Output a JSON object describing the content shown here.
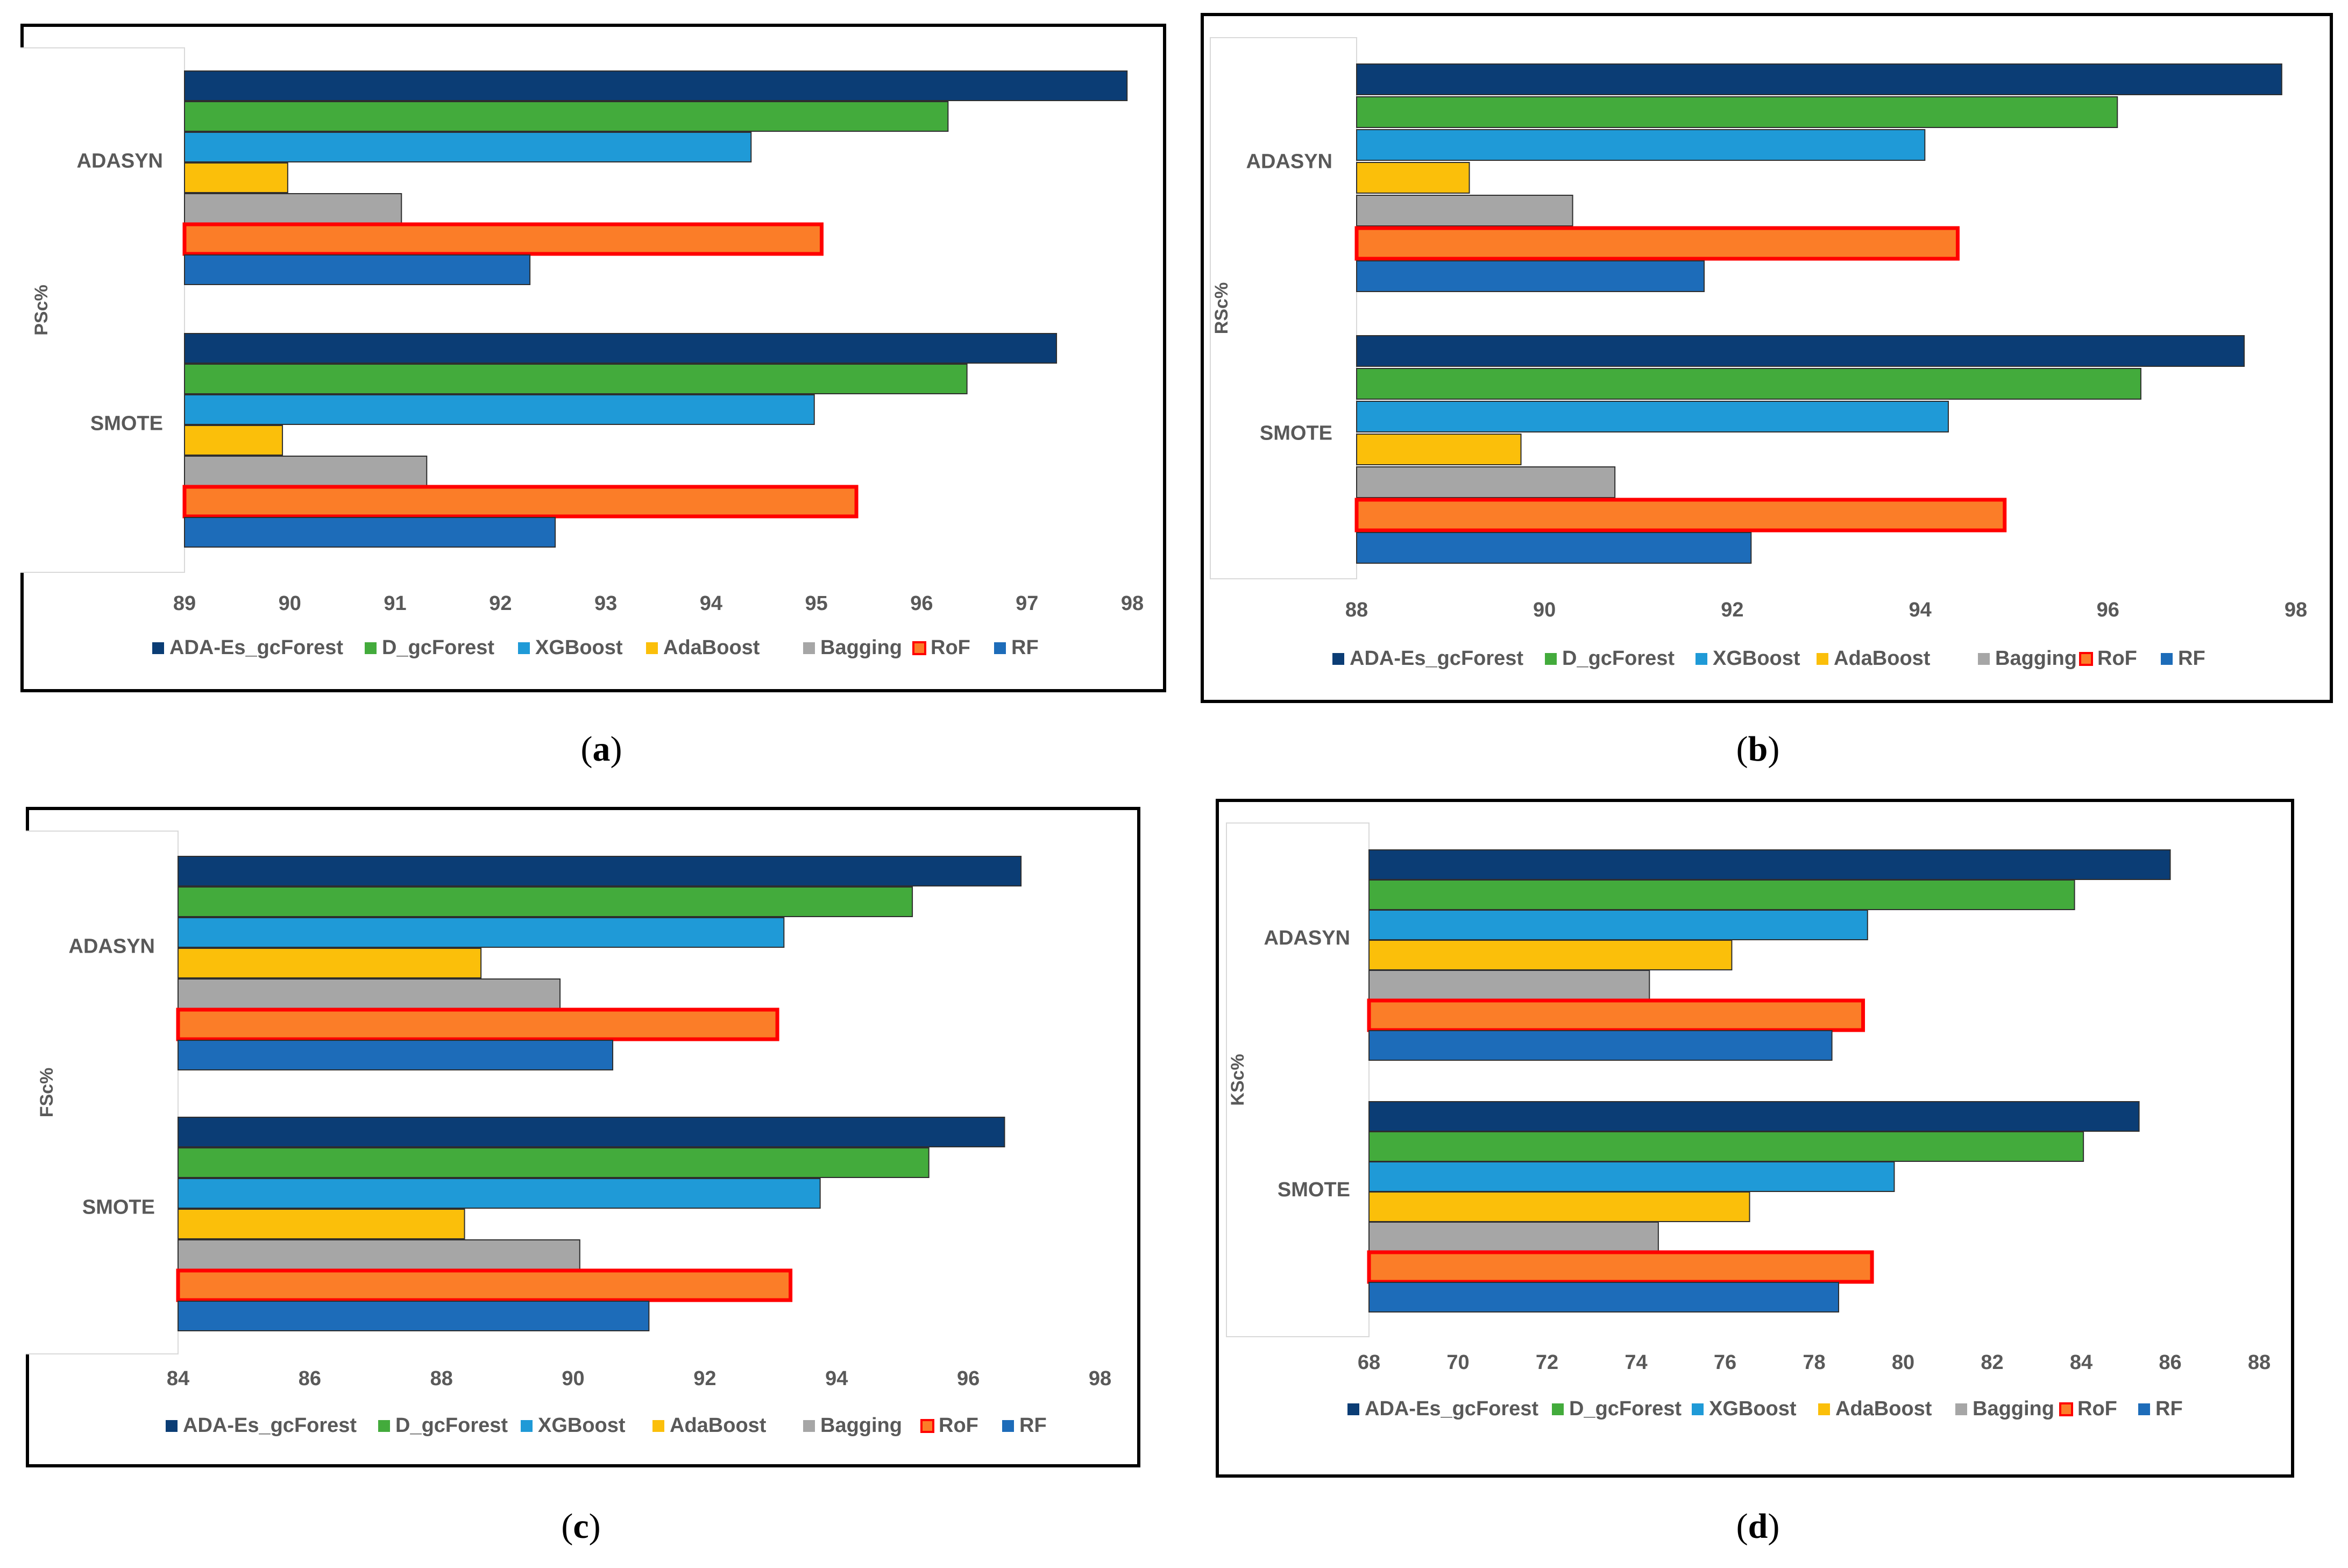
{
  "colors": {
    "ADA-Es_gcForest": "#0b3d75",
    "D_gcForest": "#43ab3c",
    "XGBoost": "#1f9ad7",
    "AdaBoost": "#fbbf0a",
    "Bagging": "#a6a6a6",
    "RoF": "#fb7d28",
    "RoF_border": "#ff0000",
    "RF": "#1d6cb9"
  },
  "legend": [
    "ADA-Es_gcForest",
    "D_gcForest",
    "XGBoost",
    "AdaBoost",
    "Bagging",
    "RoF",
    "RF"
  ],
  "chart_data": [
    {
      "id": "a",
      "type": "bar",
      "orientation": "horizontal",
      "caption_letter": "a",
      "ylabel": "PSc%",
      "categories": [
        "ADASYN",
        "SMOTE"
      ],
      "xlim": [
        89,
        98
      ],
      "ticks": [
        89,
        90,
        91,
        92,
        93,
        94,
        95,
        96,
        97,
        98
      ],
      "series": [
        {
          "name": "ADA-Es_gcForest",
          "values": [
            97.95,
            97.28
          ]
        },
        {
          "name": "D_gcForest",
          "values": [
            96.25,
            96.43
          ]
        },
        {
          "name": "XGBoost",
          "values": [
            94.38,
            94.98
          ]
        },
        {
          "name": "AdaBoost",
          "values": [
            89.98,
            89.93
          ]
        },
        {
          "name": "Bagging",
          "values": [
            91.06,
            91.3
          ]
        },
        {
          "name": "RoF",
          "values": [
            95.05,
            95.38
          ]
        },
        {
          "name": "RF",
          "values": [
            92.28,
            92.52
          ]
        }
      ]
    },
    {
      "id": "b",
      "type": "bar",
      "orientation": "horizontal",
      "caption_letter": "b",
      "ylabel": "RSc%",
      "categories": [
        "ADASYN",
        "SMOTE"
      ],
      "xlim": [
        88,
        98
      ],
      "ticks": [
        88,
        90,
        92,
        94,
        96,
        98
      ],
      "series": [
        {
          "name": "ADA-Es_gcForest",
          "values": [
            97.85,
            97.45
          ]
        },
        {
          "name": "D_gcForest",
          "values": [
            96.1,
            96.35
          ]
        },
        {
          "name": "XGBoost",
          "values": [
            94.05,
            94.3
          ]
        },
        {
          "name": "AdaBoost",
          "values": [
            89.2,
            89.75
          ]
        },
        {
          "name": "Bagging",
          "values": [
            90.3,
            90.75
          ]
        },
        {
          "name": "RoF",
          "values": [
            94.4,
            94.9
          ]
        },
        {
          "name": "RF",
          "values": [
            91.7,
            92.2
          ]
        }
      ]
    },
    {
      "id": "c",
      "type": "bar",
      "orientation": "horizontal",
      "caption_letter": "c",
      "ylabel": "FSc%",
      "categories": [
        "ADASYN",
        "SMOTE"
      ],
      "xlim": [
        84,
        98
      ],
      "ticks": [
        84,
        86,
        88,
        90,
        92,
        94,
        96,
        98
      ],
      "series": [
        {
          "name": "ADA-Es_gcForest",
          "values": [
            96.8,
            96.55
          ]
        },
        {
          "name": "D_gcForest",
          "values": [
            95.15,
            95.4
          ]
        },
        {
          "name": "XGBoost",
          "values": [
            93.2,
            93.75
          ]
        },
        {
          "name": "AdaBoost",
          "values": [
            88.6,
            88.35
          ]
        },
        {
          "name": "Bagging",
          "values": [
            89.8,
            90.1
          ]
        },
        {
          "name": "RoF",
          "values": [
            93.1,
            93.3
          ]
        },
        {
          "name": "RF",
          "values": [
            90.6,
            91.15
          ]
        }
      ]
    },
    {
      "id": "d",
      "type": "bar",
      "orientation": "horizontal",
      "caption_letter": "d",
      "ylabel": "KSc%",
      "categories": [
        "ADASYN",
        "SMOTE"
      ],
      "xlim": [
        68,
        88
      ],
      "ticks": [
        68,
        70,
        72,
        74,
        76,
        78,
        80,
        82,
        84,
        86,
        88
      ],
      "series": [
        {
          "name": "ADA-Es_gcForest",
          "values": [
            86.0,
            85.3
          ]
        },
        {
          "name": "D_gcForest",
          "values": [
            83.85,
            84.05
          ]
        },
        {
          "name": "XGBoost",
          "values": [
            79.2,
            79.8
          ]
        },
        {
          "name": "AdaBoost",
          "values": [
            76.15,
            76.55
          ]
        },
        {
          "name": "Bagging",
          "values": [
            74.3,
            74.5
          ]
        },
        {
          "name": "RoF",
          "values": [
            79.1,
            79.3
          ]
        },
        {
          "name": "RF",
          "values": [
            78.4,
            78.55
          ]
        }
      ]
    }
  ]
}
